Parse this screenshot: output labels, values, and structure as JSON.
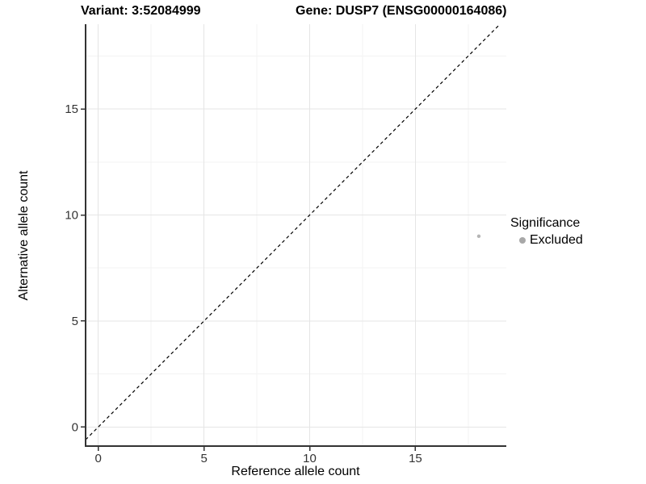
{
  "titles": {
    "variant": "Variant: 3:52084999",
    "gene": "Gene: DUSP7 (ENSG00000164086)"
  },
  "chart_data": {
    "type": "scatter",
    "xlabel": "Reference allele count",
    "ylabel": "Alternative allele count",
    "xlim": [
      -0.6,
      19.3
    ],
    "ylim": [
      -0.9,
      19.0
    ],
    "x_ticks": [
      0,
      5,
      10,
      15
    ],
    "y_ticks": [
      0,
      5,
      10,
      15
    ],
    "x_minor_ticks": [
      2.5,
      7.5,
      12.5,
      17.5
    ],
    "y_minor_ticks": [
      2.5,
      7.5,
      12.5,
      17.5
    ],
    "grid": "on",
    "points": [
      {
        "x": 18,
        "y": 9,
        "series": "Excluded"
      }
    ],
    "identity_line": {
      "style": "dashed",
      "slope": 1,
      "intercept": 0,
      "color": "#000000"
    },
    "legend": {
      "position": "right",
      "title": "Significance",
      "items": [
        {
          "label": "Excluded",
          "color": "#adadad"
        }
      ]
    }
  },
  "colors": {
    "background": "#ffffff",
    "axis_line": "#333333",
    "tick_mark": "#333333",
    "tick_label": "#333333",
    "grid_major": "#e5e5e5",
    "grid_minor": "#f3f3f3",
    "point_fill": "#b5b5b5",
    "legend_key_fill": "#a8a8a8"
  }
}
